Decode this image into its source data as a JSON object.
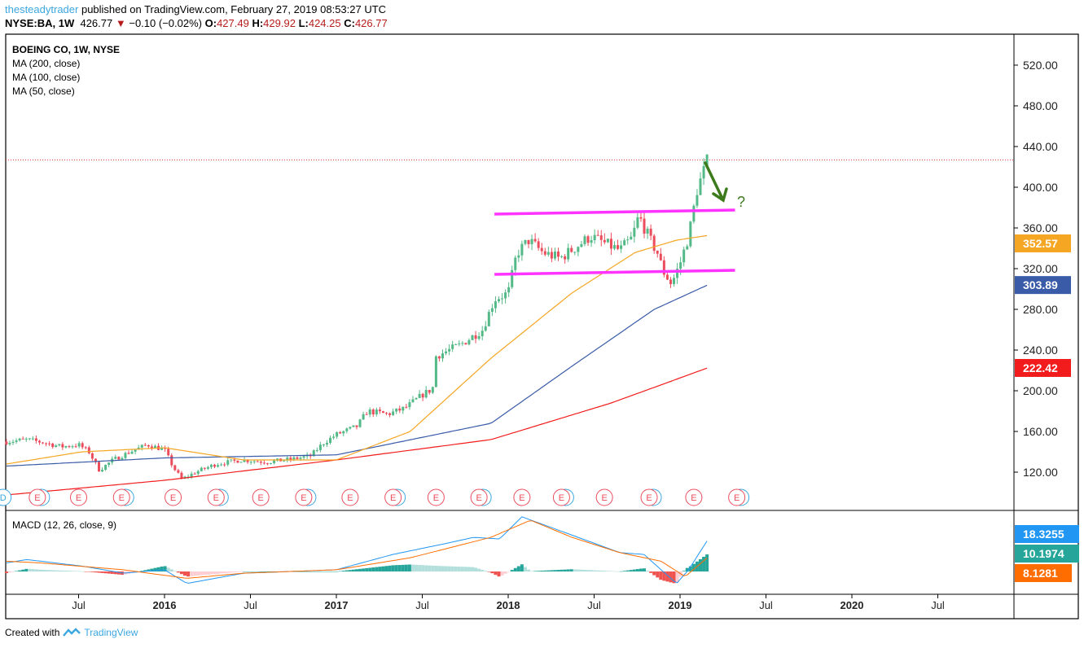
{
  "header": {
    "author": "thesteadytrader",
    "published": "published on TradingView.com, February 27, 2019 08:53:27 UTC",
    "symbol": "NYSE:BA, 1W",
    "last": "426.77",
    "change": "−0.10 (−0.02%)",
    "o_label": "O:",
    "o": "427.49",
    "h_label": "H:",
    "h": "429.92",
    "l_label": "L:",
    "l": "424.25",
    "c_label": "C:",
    "c": "426.77"
  },
  "legend": {
    "title": "BOEING CO, 1W, NYSE",
    "ma200": "MA (200, close)",
    "ma100": "MA (100, close)",
    "ma50": "MA (50, close)",
    "macd": "MACD (12, 26, close, 9)"
  },
  "footer": {
    "created": "Created with",
    "brand": "TradingView"
  },
  "colors": {
    "up": "#53b987",
    "down": "#eb4d5c",
    "ma200": "#f21c1c",
    "ma100": "#3a5ba8",
    "ma50": "#f5a623",
    "channel": "#ff33ff",
    "arrow": "#3d7a1c",
    "macd": "#2196f3",
    "signal": "#ff6d00"
  },
  "annotation": {
    "question": "?"
  },
  "chart_data": {
    "type": "candlestick",
    "title": "BOEING CO, 1W, NYSE",
    "ylim": [
      80,
      560
    ],
    "price_ticks": [
      "520.00",
      "480.00",
      "440.00",
      "400.00",
      "360.00",
      "320.00",
      "280.00",
      "240.00",
      "200.00",
      "160.00",
      "120.00"
    ],
    "price_tick_values": [
      520,
      480,
      440,
      400,
      360,
      320,
      280,
      240,
      200,
      160,
      120
    ],
    "time_ticks": [
      {
        "label": "Jul",
        "t": 2015.5,
        "bold": false
      },
      {
        "label": "2016",
        "t": 2016,
        "bold": true
      },
      {
        "label": "Jul",
        "t": 2016.5,
        "bold": false
      },
      {
        "label": "2017",
        "t": 2017,
        "bold": true
      },
      {
        "label": "Jul",
        "t": 2017.5,
        "bold": false
      },
      {
        "label": "2018",
        "t": 2018,
        "bold": true
      },
      {
        "label": "Jul",
        "t": 2018.5,
        "bold": false
      },
      {
        "label": "2019",
        "t": 2019,
        "bold": true
      },
      {
        "label": "Jul",
        "t": 2019.5,
        "bold": false
      },
      {
        "label": "2020",
        "t": 2020,
        "bold": true
      },
      {
        "label": "Jul",
        "t": 2020.5,
        "bold": false
      }
    ],
    "price_keypoints": [
      [
        2015.08,
        150
      ],
      [
        2015.2,
        152
      ],
      [
        2015.3,
        149
      ],
      [
        2015.4,
        145
      ],
      [
        2015.5,
        147
      ],
      [
        2015.56,
        140
      ],
      [
        2015.62,
        122
      ],
      [
        2015.7,
        132
      ],
      [
        2015.8,
        140
      ],
      [
        2015.9,
        147
      ],
      [
        2016.0,
        142
      ],
      [
        2016.05,
        125
      ],
      [
        2016.1,
        113
      ],
      [
        2016.18,
        120
      ],
      [
        2016.3,
        128
      ],
      [
        2016.45,
        132
      ],
      [
        2016.6,
        130
      ],
      [
        2016.75,
        133
      ],
      [
        2016.85,
        136
      ],
      [
        2016.92,
        148
      ],
      [
        2017.0,
        157
      ],
      [
        2017.12,
        165
      ],
      [
        2017.18,
        180
      ],
      [
        2017.3,
        177
      ],
      [
        2017.4,
        183
      ],
      [
        2017.5,
        196
      ],
      [
        2017.56,
        202
      ],
      [
        2017.58,
        234
      ],
      [
        2017.72,
        245
      ],
      [
        2017.85,
        260
      ],
      [
        2017.92,
        290
      ],
      [
        2018.0,
        296
      ],
      [
        2018.05,
        335
      ],
      [
        2018.12,
        348
      ],
      [
        2018.2,
        336
      ],
      [
        2018.3,
        330
      ],
      [
        2018.4,
        342
      ],
      [
        2018.48,
        352
      ],
      [
        2018.56,
        345
      ],
      [
        2018.65,
        338
      ],
      [
        2018.72,
        350
      ],
      [
        2018.76,
        372
      ],
      [
        2018.82,
        350
      ],
      [
        2018.87,
        335
      ],
      [
        2018.9,
        318
      ],
      [
        2018.95,
        305
      ],
      [
        2019.0,
        325
      ],
      [
        2019.05,
        352
      ],
      [
        2019.1,
        398
      ],
      [
        2019.16,
        426.77
      ]
    ],
    "ma200_keypoints": [
      [
        2015.08,
        97.6
      ],
      [
        2016,
        112
      ],
      [
        2017,
        132
      ],
      [
        2017.9,
        152
      ],
      [
        2018.6,
        188
      ],
      [
        2019.16,
        222.42
      ]
    ],
    "ma100_keypoints": [
      [
        2015.08,
        126
      ],
      [
        2016,
        134
      ],
      [
        2017,
        137
      ],
      [
        2017.9,
        168
      ],
      [
        2018.37,
        224
      ],
      [
        2018.85,
        280
      ],
      [
        2019.16,
        303.89
      ]
    ],
    "ma50_keypoints": [
      [
        2015.08,
        128
      ],
      [
        2015.52,
        140
      ],
      [
        2016,
        144
      ],
      [
        2016.46,
        132
      ],
      [
        2017,
        132
      ],
      [
        2017.43,
        160
      ],
      [
        2017.9,
        232
      ],
      [
        2018.37,
        296
      ],
      [
        2018.74,
        336
      ],
      [
        2018.98,
        348
      ],
      [
        2019.16,
        352.57
      ]
    ],
    "current_price": 426.77,
    "ma_labels": {
      "ma50": "352.57",
      "ma100": "303.89",
      "ma200": "222.42"
    },
    "channel": {
      "upper": [
        [
          2017.92,
          373.6
        ],
        [
          2019.32,
          377.6
        ]
      ],
      "lower": [
        [
          2017.92,
          314.4
        ],
        [
          2019.32,
          318.4
        ]
      ]
    },
    "earnings": [
      {
        "t": 2015.06,
        "label": "D"
      },
      {
        "t": 2015.26,
        "label": "E"
      },
      {
        "t": 2015.5,
        "label": "E"
      },
      {
        "t": 2015.75,
        "label": "E"
      },
      {
        "t": 2016.05,
        "label": "E"
      },
      {
        "t": 2016.3,
        "label": "E"
      },
      {
        "t": 2016.56,
        "label": "E"
      },
      {
        "t": 2016.81,
        "label": "E"
      },
      {
        "t": 2017.08,
        "label": "E"
      },
      {
        "t": 2017.33,
        "label": "E"
      },
      {
        "t": 2017.58,
        "label": "E"
      },
      {
        "t": 2017.83,
        "label": "E"
      },
      {
        "t": 2018.08,
        "label": "E"
      },
      {
        "t": 2018.31,
        "label": "E"
      },
      {
        "t": 2018.56,
        "label": "E"
      },
      {
        "t": 2018.82,
        "label": "E"
      },
      {
        "t": 2019.08,
        "label": "E"
      },
      {
        "t": 2019.33,
        "label": "E"
      }
    ],
    "macd": {
      "label": "MACD (12, 26, close, 9)",
      "macd_keypoints": [
        [
          2015.08,
          5
        ],
        [
          2015.2,
          7
        ],
        [
          2015.53,
          3
        ],
        [
          2015.76,
          -1
        ],
        [
          2016,
          1
        ],
        [
          2016.13,
          -7
        ],
        [
          2016.46,
          -1
        ],
        [
          2017,
          1
        ],
        [
          2017.33,
          10
        ],
        [
          2017.62,
          16
        ],
        [
          2017.8,
          20
        ],
        [
          2017.95,
          19
        ],
        [
          2018.08,
          32
        ],
        [
          2018.27,
          25
        ],
        [
          2018.46,
          18
        ],
        [
          2018.65,
          11
        ],
        [
          2018.79,
          10
        ],
        [
          2018.89,
          1
        ],
        [
          2018.98,
          -7
        ],
        [
          2019.05,
          1
        ],
        [
          2019.16,
          18.33
        ]
      ],
      "signal_keypoints": [
        [
          2015.08,
          6
        ],
        [
          2015.28,
          5
        ],
        [
          2015.76,
          1
        ],
        [
          2016.13,
          -4
        ],
        [
          2016.46,
          -1
        ],
        [
          2017,
          1
        ],
        [
          2017.43,
          8
        ],
        [
          2017.9,
          20
        ],
        [
          2018.13,
          30
        ],
        [
          2018.37,
          20
        ],
        [
          2018.65,
          11
        ],
        [
          2018.89,
          6
        ],
        [
          2019.03,
          -3
        ],
        [
          2019.16,
          8.13
        ]
      ],
      "labels": {
        "macd": "18.3255",
        "hist": "10.1974",
        "signal": "8.1281"
      },
      "hist_colors": {
        "up_strong": "#26a69a",
        "up_weak": "#b2dfdb",
        "down_strong": "#ef5350",
        "down_weak": "#ffcdd2"
      }
    }
  }
}
